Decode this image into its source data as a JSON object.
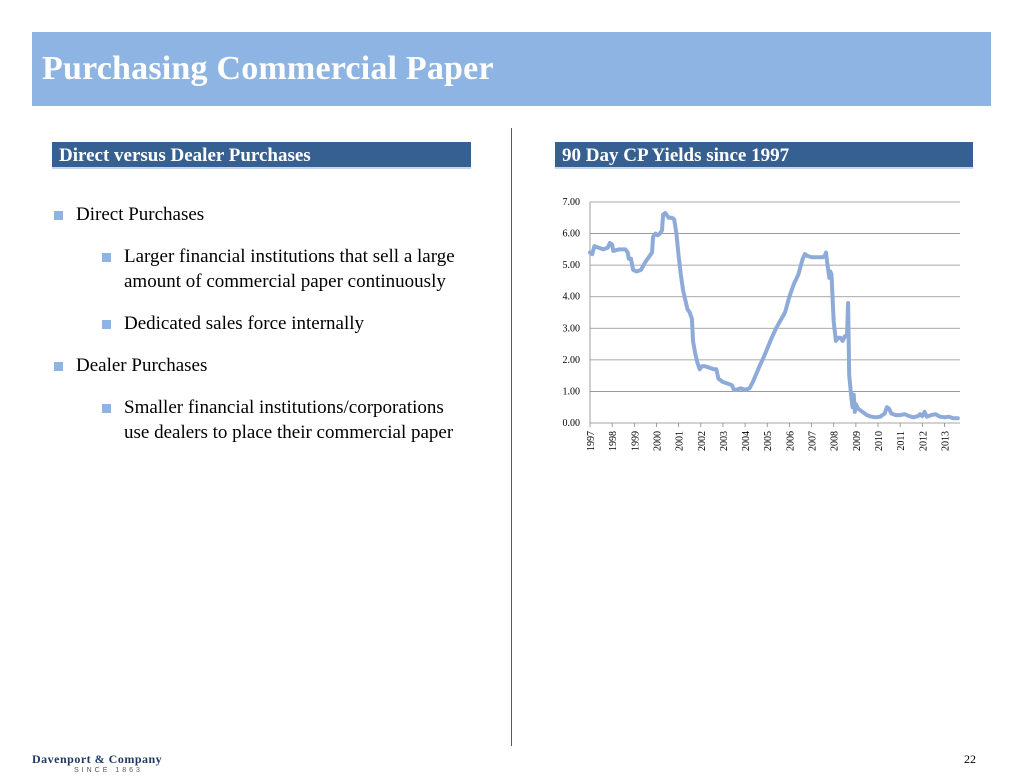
{
  "slide": {
    "title": "Purchasing Commercial Paper",
    "left_header": "Direct versus Dealer Purchases",
    "right_header": "90 Day CP Yields since 1997",
    "bullets": {
      "b1": "Direct Purchases",
      "b1a": "Larger financial institutions that sell a large amount of commercial paper continuously",
      "b1b": "Dedicated sales force internally",
      "b2": "Dealer Purchases",
      "b2a": "Smaller financial institutions/corporations use dealers to place their commercial paper"
    },
    "footer_brand": "Davenport & Company",
    "footer_since": "SINCE 1863",
    "page_number": "22"
  },
  "colors": {
    "title_bg": "#8eb4e3",
    "header_bg": "#376092",
    "line": "#8eaad8",
    "bullet": "#8eb4e3"
  },
  "chart_data": {
    "type": "line",
    "title": "",
    "xlabel": "",
    "ylabel": "",
    "ylim": [
      0,
      7
    ],
    "yticks": [
      "0.00",
      "1.00",
      "2.00",
      "3.00",
      "4.00",
      "5.00",
      "6.00",
      "7.00"
    ],
    "xticks": [
      "1997",
      "1998",
      "1999",
      "2000",
      "2001",
      "2002",
      "2003",
      "2004",
      "2005",
      "2006",
      "2007",
      "2008",
      "2009",
      "2010",
      "2011",
      "2012",
      "2013"
    ],
    "grid": true,
    "series": [
      {
        "values": [
          [
            1997.0,
            5.4
          ],
          [
            1997.1,
            5.35
          ],
          [
            1997.2,
            5.6
          ],
          [
            1997.4,
            5.55
          ],
          [
            1997.6,
            5.5
          ],
          [
            1997.8,
            5.55
          ],
          [
            1997.9,
            5.7
          ],
          [
            1998.0,
            5.65
          ],
          [
            1998.05,
            5.45
          ],
          [
            1998.3,
            5.5
          ],
          [
            1998.6,
            5.5
          ],
          [
            1998.7,
            5.4
          ],
          [
            1998.75,
            5.2
          ],
          [
            1998.85,
            5.2
          ],
          [
            1998.9,
            5.0
          ],
          [
            1998.95,
            4.85
          ],
          [
            1999.1,
            4.8
          ],
          [
            1999.3,
            4.85
          ],
          [
            1999.5,
            5.1
          ],
          [
            1999.7,
            5.3
          ],
          [
            1999.8,
            5.4
          ],
          [
            1999.85,
            5.9
          ],
          [
            1999.95,
            6.0
          ],
          [
            2000.05,
            5.95
          ],
          [
            2000.15,
            6.0
          ],
          [
            2000.25,
            6.1
          ],
          [
            2000.3,
            6.6
          ],
          [
            2000.4,
            6.65
          ],
          [
            2000.55,
            6.5
          ],
          [
            2000.7,
            6.5
          ],
          [
            2000.8,
            6.45
          ],
          [
            2000.9,
            6.0
          ],
          [
            2001.0,
            5.3
          ],
          [
            2001.1,
            4.7
          ],
          [
            2001.2,
            4.2
          ],
          [
            2001.3,
            3.9
          ],
          [
            2001.4,
            3.6
          ],
          [
            2001.5,
            3.5
          ],
          [
            2001.6,
            3.3
          ],
          [
            2001.65,
            2.6
          ],
          [
            2001.75,
            2.2
          ],
          [
            2001.85,
            1.9
          ],
          [
            2001.95,
            1.7
          ],
          [
            2002.05,
            1.8
          ],
          [
            2002.2,
            1.8
          ],
          [
            2002.4,
            1.75
          ],
          [
            2002.6,
            1.7
          ],
          [
            2002.7,
            1.7
          ],
          [
            2002.8,
            1.4
          ],
          [
            2003.0,
            1.3
          ],
          [
            2003.2,
            1.25
          ],
          [
            2003.4,
            1.2
          ],
          [
            2003.5,
            1.05
          ],
          [
            2003.6,
            1.05
          ],
          [
            2003.8,
            1.1
          ],
          [
            2004.0,
            1.05
          ],
          [
            2004.2,
            1.1
          ],
          [
            2004.35,
            1.3
          ],
          [
            2004.5,
            1.55
          ],
          [
            2004.65,
            1.8
          ],
          [
            2004.85,
            2.1
          ],
          [
            2005.0,
            2.35
          ],
          [
            2005.2,
            2.7
          ],
          [
            2005.4,
            3.0
          ],
          [
            2005.6,
            3.25
          ],
          [
            2005.8,
            3.5
          ],
          [
            2006.0,
            4.0
          ],
          [
            2006.2,
            4.4
          ],
          [
            2006.4,
            4.7
          ],
          [
            2006.5,
            4.95
          ],
          [
            2006.6,
            5.2
          ],
          [
            2006.7,
            5.35
          ],
          [
            2006.8,
            5.3
          ],
          [
            2007.0,
            5.25
          ],
          [
            2007.3,
            5.25
          ],
          [
            2007.5,
            5.25
          ],
          [
            2007.6,
            5.3
          ],
          [
            2007.65,
            5.4
          ],
          [
            2007.7,
            5.1
          ],
          [
            2007.8,
            4.6
          ],
          [
            2007.85,
            4.8
          ],
          [
            2007.9,
            4.7
          ],
          [
            2008.0,
            3.2
          ],
          [
            2008.05,
            2.9
          ],
          [
            2008.1,
            2.6
          ],
          [
            2008.2,
            2.7
          ],
          [
            2008.3,
            2.7
          ],
          [
            2008.4,
            2.6
          ],
          [
            2008.5,
            2.75
          ],
          [
            2008.6,
            2.75
          ],
          [
            2008.65,
            3.8
          ],
          [
            2008.7,
            1.5
          ],
          [
            2008.8,
            0.8
          ],
          [
            2008.85,
            0.5
          ],
          [
            2008.9,
            0.9
          ],
          [
            2008.95,
            0.35
          ],
          [
            2009.0,
            0.6
          ],
          [
            2009.1,
            0.45
          ],
          [
            2009.3,
            0.35
          ],
          [
            2009.5,
            0.25
          ],
          [
            2009.7,
            0.2
          ],
          [
            2009.9,
            0.18
          ],
          [
            2010.1,
            0.2
          ],
          [
            2010.3,
            0.3
          ],
          [
            2010.4,
            0.5
          ],
          [
            2010.5,
            0.45
          ],
          [
            2010.6,
            0.3
          ],
          [
            2010.8,
            0.25
          ],
          [
            2011.0,
            0.25
          ],
          [
            2011.2,
            0.28
          ],
          [
            2011.4,
            0.22
          ],
          [
            2011.6,
            0.18
          ],
          [
            2011.8,
            0.22
          ],
          [
            2011.9,
            0.28
          ],
          [
            2012.0,
            0.22
          ],
          [
            2012.1,
            0.35
          ],
          [
            2012.2,
            0.2
          ],
          [
            2012.4,
            0.25
          ],
          [
            2012.6,
            0.28
          ],
          [
            2012.8,
            0.2
          ],
          [
            2013.0,
            0.18
          ],
          [
            2013.2,
            0.2
          ],
          [
            2013.4,
            0.15
          ],
          [
            2013.6,
            0.15
          ]
        ]
      }
    ]
  }
}
